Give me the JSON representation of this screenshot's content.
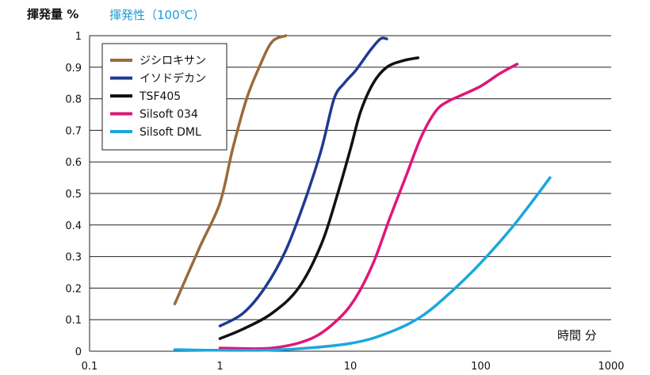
{
  "chart_data": {
    "type": "line",
    "title": "揮発性（100℃）",
    "ylabel": "揮発量 %",
    "xlabel": "時間 分",
    "xscale": "log",
    "xlim": [
      0.1,
      1000
    ],
    "ylim": [
      0,
      1
    ],
    "xticks": [
      "0.1",
      "1",
      "10",
      "100",
      "1000"
    ],
    "yticks": [
      "0",
      "0.1",
      "0.2",
      "0.3",
      "0.4",
      "0.5",
      "0.6",
      "0.7",
      "0.8",
      "0.9",
      "1"
    ],
    "grid": "horizontal",
    "legend_position": "top-left",
    "series": [
      {
        "name": "ジシロキサン",
        "color": "#9b6a3c",
        "x": [
          0.45,
          0.7,
          1.0,
          1.25,
          1.6,
          2.0,
          2.5,
          3.2
        ],
        "y": [
          0.15,
          0.33,
          0.47,
          0.64,
          0.8,
          0.9,
          0.98,
          1.0
        ]
      },
      {
        "name": "イソドデカン",
        "color": "#1f3a93",
        "x": [
          1.0,
          1.5,
          2.2,
          3.2,
          4.5,
          6.0,
          7.5,
          9.0,
          11,
          14,
          17,
          19
        ],
        "y": [
          0.08,
          0.12,
          0.2,
          0.32,
          0.48,
          0.64,
          0.8,
          0.85,
          0.89,
          0.95,
          0.99,
          0.99
        ]
      },
      {
        "name": "TSF405",
        "color": "#111111",
        "x": [
          1.0,
          1.5,
          2.5,
          4.0,
          6.0,
          8.0,
          10,
          12,
          15,
          19,
          25,
          33
        ],
        "y": [
          0.04,
          0.07,
          0.12,
          0.2,
          0.34,
          0.5,
          0.64,
          0.76,
          0.85,
          0.9,
          0.92,
          0.93
        ]
      },
      {
        "name": "Silsoft 034",
        "color": "#e0167a",
        "x": [
          1.0,
          2.5,
          5.0,
          8.0,
          11,
          15,
          20,
          27,
          35,
          45,
          55,
          70,
          100,
          140,
          190
        ],
        "y": [
          0.01,
          0.01,
          0.04,
          0.1,
          0.17,
          0.28,
          0.42,
          0.56,
          0.68,
          0.76,
          0.79,
          0.81,
          0.84,
          0.88,
          0.91
        ]
      },
      {
        "name": "Silsoft DML",
        "color": "#1aa7de",
        "x": [
          0.45,
          1.0,
          3.0,
          10,
          20,
          35,
          60,
          100,
          180,
          340
        ],
        "y": [
          0.005,
          0.003,
          0.005,
          0.025,
          0.06,
          0.11,
          0.19,
          0.28,
          0.4,
          0.55
        ]
      }
    ]
  }
}
